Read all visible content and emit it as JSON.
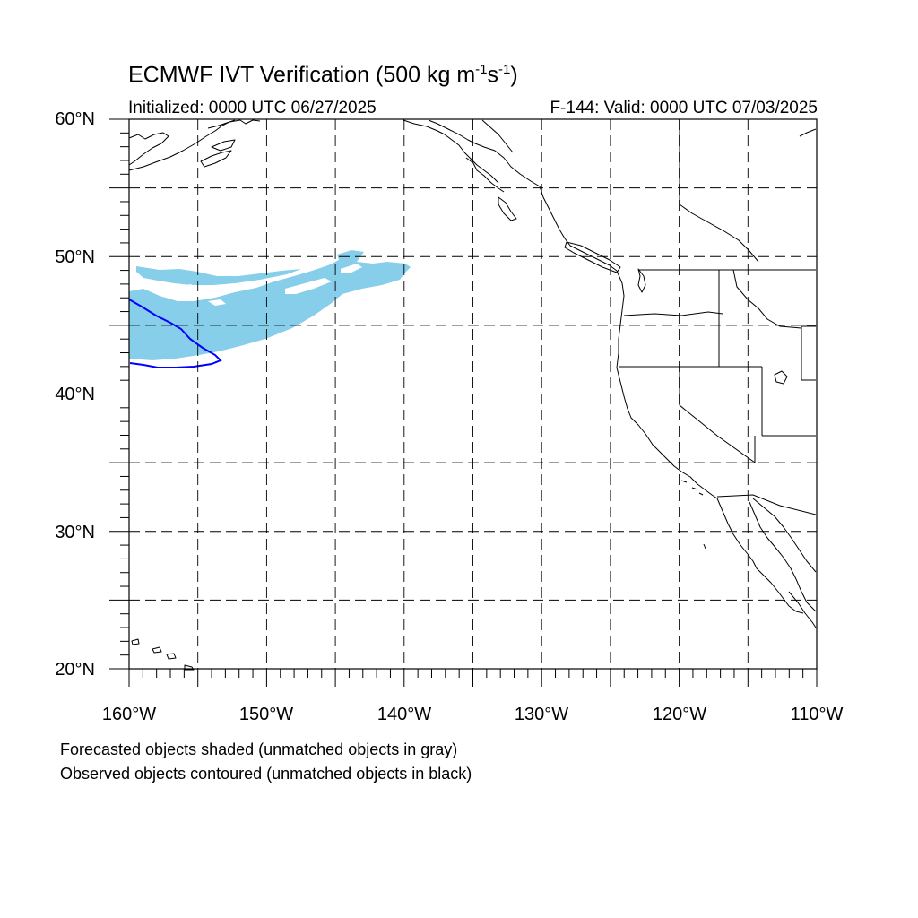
{
  "title": {
    "main_prefix": "ECMWF IVT Verification (500 kg m",
    "exp1": "-1",
    "mid": "s",
    "exp2": "-1",
    "suffix": ")"
  },
  "initialized": "Initialized: 0000 UTC 06/27/2025",
  "valid": "F-144: Valid: 0000 UTC 07/03/2025",
  "lat_labels": [
    "60°N",
    "50°N",
    "40°N",
    "30°N",
    "20°N"
  ],
  "lon_labels": [
    "160°W",
    "150°W",
    "140°W",
    "130°W",
    "120°W",
    "110°W"
  ],
  "notes": [
    "Forecasted objects shaded (unmatched objects in gray)",
    "Observed objects contoured (unmatched objects in black)"
  ],
  "colors": {
    "forecast_shade": "#87ceeb",
    "observed_contour": "#0000ff",
    "coastline": "#000000",
    "grid": "#000000"
  },
  "map_extent": {
    "lon_min": -160,
    "lon_max": -110,
    "lat_min": 20,
    "lat_max": 60,
    "grid_spacing_deg": 5
  }
}
